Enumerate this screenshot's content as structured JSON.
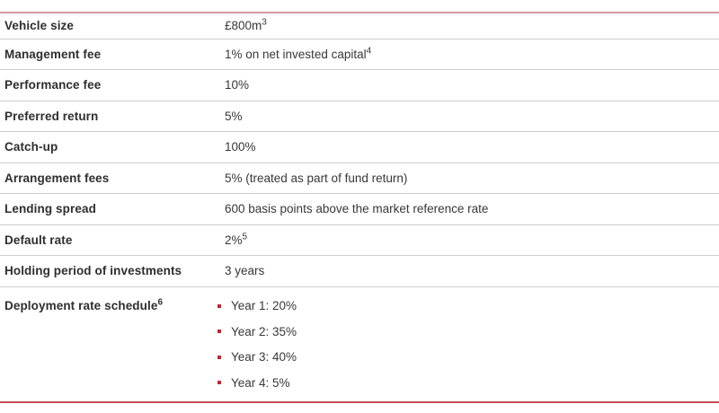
{
  "table": {
    "rows": [
      {
        "label": "Vehicle size",
        "label_sup": "",
        "value": "£800m",
        "value_sup": "3"
      },
      {
        "label": "Management fee",
        "label_sup": "",
        "value": "1% on net invested capital",
        "value_sup": "4"
      },
      {
        "label": "Performance fee",
        "label_sup": "",
        "value": "10%",
        "value_sup": ""
      },
      {
        "label": "Preferred return",
        "label_sup": "",
        "value": "5%",
        "value_sup": ""
      },
      {
        "label": "Catch-up",
        "label_sup": "",
        "value": "100%",
        "value_sup": ""
      },
      {
        "label": "Arrangement fees",
        "label_sup": "",
        "value": "5% (treated as part of fund return)",
        "value_sup": ""
      },
      {
        "label": "Lending spread",
        "label_sup": "",
        "value": "600 basis points above the market reference rate",
        "value_sup": ""
      },
      {
        "label": "Default rate",
        "label_sup": "",
        "value": "2%",
        "value_sup": "5"
      },
      {
        "label": "Holding period of investments",
        "label_sup": "",
        "value": "3 years",
        "value_sup": ""
      },
      {
        "label": "Deployment rate schedule",
        "label_sup": "6",
        "bullets": [
          "Year 1: 20%",
          "Year 2: 35%",
          "Year 3: 40%",
          "Year 4: 5%"
        ]
      }
    ],
    "colors": {
      "top_rule": "#d49aa2",
      "bottom_rule": "#c14d55",
      "row_divider": "#cccccc",
      "bullet_red": "#cb2128",
      "text": "#333333"
    }
  }
}
